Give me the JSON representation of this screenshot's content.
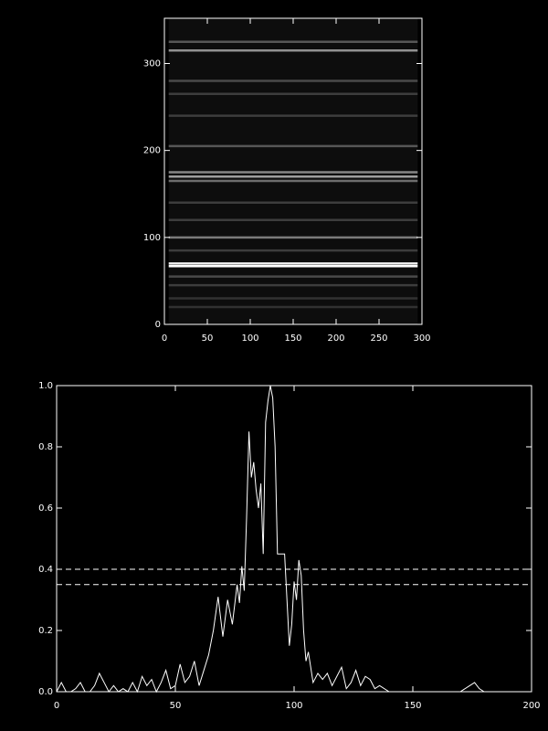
{
  "chart_data": [
    {
      "type": "image",
      "color": "#ffffff",
      "xlim": [
        0,
        300
      ],
      "ylim": [
        0,
        352
      ],
      "xticks": [
        0,
        50,
        100,
        150,
        200,
        250,
        300
      ],
      "yticks": [
        0,
        100,
        200,
        300
      ],
      "image_x": [
        5,
        295
      ],
      "rows": [
        20,
        30,
        45,
        55,
        67,
        70,
        85,
        100,
        120,
        140,
        165,
        170,
        175,
        205,
        240,
        265,
        280,
        315,
        325
      ],
      "intensity": [
        0.15,
        0.15,
        0.2,
        0.25,
        1.0,
        0.95,
        0.2,
        0.45,
        0.2,
        0.2,
        0.4,
        0.6,
        0.5,
        0.3,
        0.2,
        0.2,
        0.25,
        0.55,
        0.3
      ]
    },
    {
      "type": "line",
      "color": "#ffffff",
      "xlim": [
        0,
        200
      ],
      "ylim": [
        0,
        1
      ],
      "xticks": [
        0,
        50,
        100,
        150,
        200
      ],
      "yticks": [
        {
          "value": 0,
          "label": "0.0"
        },
        0.2,
        0.4,
        0.6,
        0.8,
        {
          "value": 1,
          "label": "1.0"
        }
      ],
      "hlines": [
        0.4,
        0.35
      ],
      "x": [
        0,
        2,
        4,
        6,
        8,
        10,
        12,
        14,
        16,
        18,
        20,
        22,
        24,
        26,
        28,
        30,
        32,
        34,
        36,
        38,
        40,
        42,
        44,
        46,
        48,
        50,
        52,
        54,
        56,
        58,
        60,
        62,
        64,
        66,
        68,
        70,
        72,
        74,
        76,
        77,
        78,
        79,
        80,
        81,
        82,
        83,
        84,
        85,
        86,
        87,
        88,
        89,
        90,
        91,
        92,
        93,
        94,
        95,
        96,
        97,
        98,
        99,
        100,
        101,
        102,
        103,
        104,
        105,
        106,
        108,
        110,
        112,
        114,
        116,
        118,
        120,
        122,
        124,
        126,
        128,
        130,
        132,
        134,
        136,
        140,
        150,
        160,
        170,
        174,
        176,
        178,
        180,
        190,
        200
      ],
      "values": [
        0,
        0.03,
        0,
        0,
        0.01,
        0.03,
        0,
        0,
        0.02,
        0.06,
        0.03,
        0,
        0.02,
        0,
        0.01,
        0,
        0.03,
        0,
        0.05,
        0.02,
        0.04,
        0,
        0.03,
        0.07,
        0.01,
        0.02,
        0.09,
        0.03,
        0.05,
        0.1,
        0.02,
        0.07,
        0.12,
        0.2,
        0.31,
        0.18,
        0.3,
        0.22,
        0.35,
        0.29,
        0.41,
        0.33,
        0.57,
        0.85,
        0.7,
        0.75,
        0.66,
        0.6,
        0.68,
        0.45,
        0.88,
        0.95,
        1.0,
        0.96,
        0.8,
        0.45,
        0.45,
        0.45,
        0.45,
        0.3,
        0.15,
        0.22,
        0.36,
        0.3,
        0.43,
        0.38,
        0.2,
        0.1,
        0.13,
        0.03,
        0.06,
        0.04,
        0.06,
        0.02,
        0.05,
        0.08,
        0.01,
        0.03,
        0.07,
        0.02,
        0.05,
        0.04,
        0.01,
        0.02,
        0,
        0,
        0,
        0,
        0.02,
        0.03,
        0.01,
        0,
        0,
        0
      ]
    }
  ]
}
